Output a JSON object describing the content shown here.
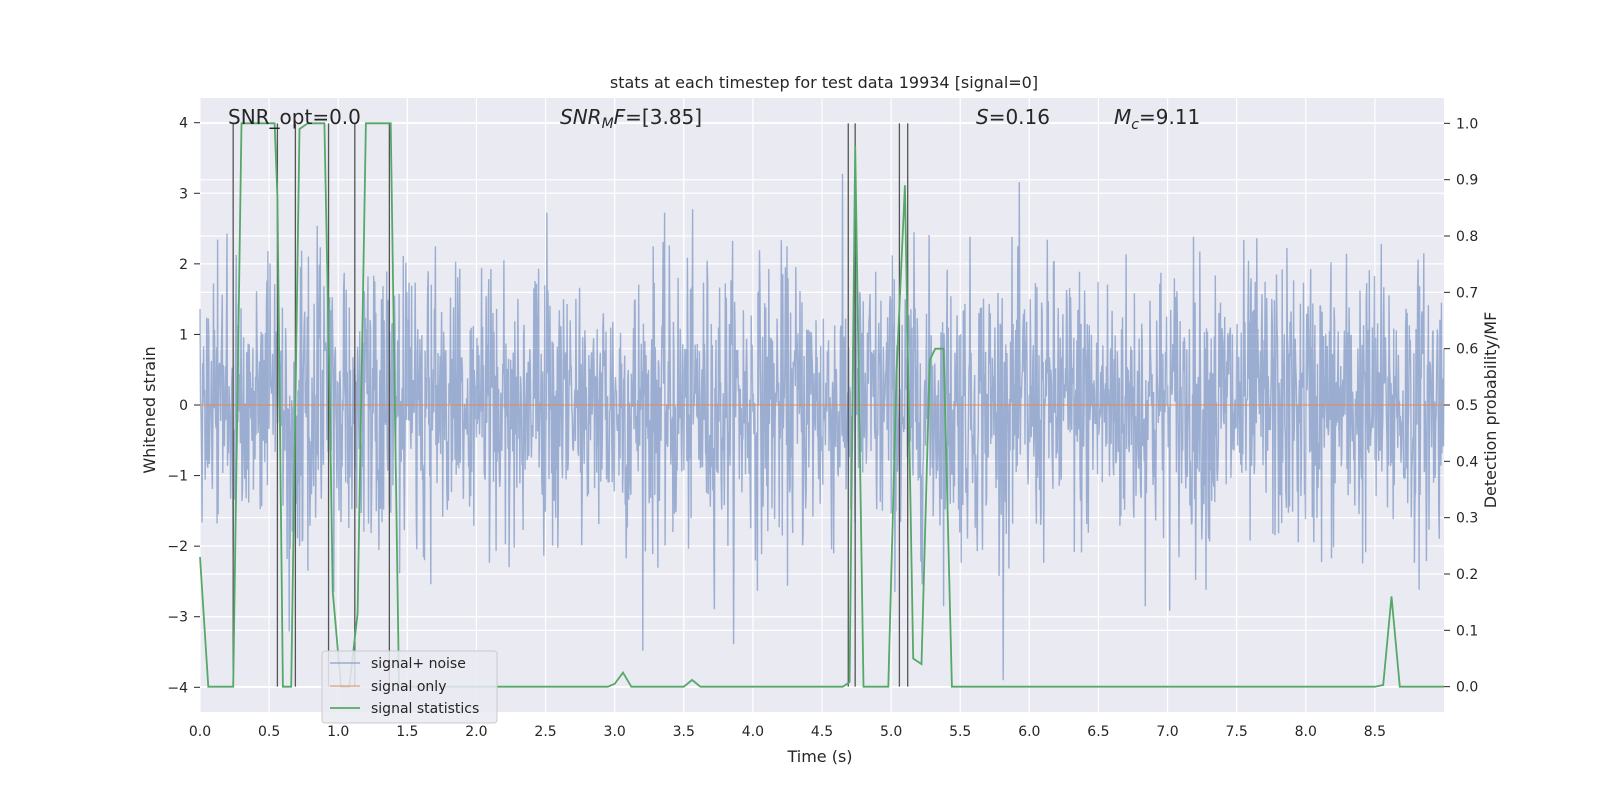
{
  "chart_data": {
    "type": "line",
    "title": "stats at each timestep for test data 19934 [signal=0]",
    "xlabel": "Time (s)",
    "ylabel": "Whitened strain",
    "y2label": "Detection probability/MF",
    "xlim": [
      0.0,
      9.0
    ],
    "ylim": [
      -4.35,
      4.35
    ],
    "y2lim": [
      -0.045,
      1.045
    ],
    "x_ticks": [
      "0.0",
      "0.5",
      "1.0",
      "1.5",
      "2.0",
      "2.5",
      "3.0",
      "3.5",
      "4.0",
      "4.5",
      "5.0",
      "5.5",
      "6.0",
      "6.5",
      "7.0",
      "7.5",
      "8.0",
      "8.5"
    ],
    "y_ticks": [
      "4",
      "3",
      "2",
      "1",
      "0",
      "−1",
      "−2",
      "−3",
      "−4"
    ],
    "y2_ticks": [
      "1.0",
      "0.9",
      "0.8",
      "0.7",
      "0.6",
      "0.5",
      "0.4",
      "0.3",
      "0.2",
      "0.1",
      "0.0"
    ],
    "grid": true,
    "annotations": {
      "snr_opt": "SNR_opt=0.0",
      "snr_mf": "=[3.85]",
      "s_stat": "=0.16",
      "mc": "=9.11"
    },
    "legend": {
      "placement": "lower-left",
      "entries": [
        "signal+ noise",
        "signal only",
        "signal statistics"
      ]
    },
    "series": [
      {
        "name": "signal+ noise",
        "color": "#4c72b0",
        "note": "white noise, approx. gaussian, sigma ~1.0, clipped peaks up to ~4",
        "sigma": 1.0,
        "x_range": [
          0.0,
          9.0
        ]
      },
      {
        "name": "signal only",
        "color": "#dd8452",
        "x": [
          0.0,
          9.0
        ],
        "y": [
          0.0,
          0.0
        ]
      },
      {
        "name": "signal statistics",
        "color": "#55a868",
        "x": [
          0.0,
          0.06,
          0.12,
          0.18,
          0.24,
          0.3,
          0.36,
          0.42,
          0.48,
          0.54,
          0.56,
          0.6,
          0.66,
          0.72,
          0.78,
          0.84,
          0.9,
          0.94,
          0.96,
          1.02,
          1.08,
          1.14,
          1.2,
          1.26,
          1.32,
          1.38,
          1.44,
          1.5,
          1.56,
          2.95,
          3.0,
          3.06,
          3.12,
          3.5,
          3.56,
          3.62,
          4.65,
          4.7,
          4.74,
          4.8,
          4.86,
          4.98,
          5.04,
          5.1,
          5.16,
          5.22,
          5.28,
          5.32,
          5.38,
          5.44,
          5.5,
          8.5,
          8.56,
          8.62,
          8.68,
          8.74,
          9.0
        ],
        "y": [
          0.23,
          0.0,
          0.0,
          0.0,
          0.0,
          1.0,
          1.0,
          1.0,
          1.0,
          1.0,
          0.87,
          0.0,
          0.0,
          0.99,
          1.0,
          1.0,
          1.0,
          0.5,
          0.17,
          0.0,
          0.0,
          0.13,
          1.0,
          1.0,
          1.0,
          1.0,
          0.0,
          0.0,
          0.0,
          0.0,
          0.005,
          0.025,
          0.0,
          0.0,
          0.012,
          0.0,
          0.0,
          0.008,
          0.96,
          0.0,
          0.0,
          0.0,
          0.56,
          0.89,
          0.05,
          0.04,
          0.58,
          0.6,
          0.6,
          0.0,
          0.0,
          0.0,
          0.003,
          0.16,
          0.0,
          0.0,
          0.0
        ]
      }
    ],
    "vlines_x": [
      0.24,
      0.56,
      0.69,
      0.93,
      1.12,
      1.37,
      4.69,
      4.74,
      5.06,
      5.12
    ]
  }
}
